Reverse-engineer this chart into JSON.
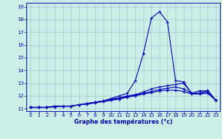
{
  "xlabel": "Graphe des températures (°c)",
  "hours": [
    0,
    1,
    2,
    3,
    4,
    5,
    6,
    7,
    8,
    9,
    10,
    11,
    12,
    13,
    14,
    15,
    16,
    17,
    18,
    19,
    20,
    21,
    22,
    23
  ],
  "line1": [
    11.1,
    11.1,
    11.1,
    11.2,
    11.2,
    11.2,
    11.3,
    11.4,
    11.5,
    11.6,
    11.8,
    12.0,
    12.2,
    13.2,
    15.3,
    18.1,
    18.6,
    17.8,
    13.2,
    13.1,
    12.2,
    12.4,
    12.4,
    11.65
  ],
  "line2": [
    11.1,
    11.1,
    11.1,
    11.2,
    11.2,
    11.2,
    11.3,
    11.4,
    11.5,
    11.6,
    11.75,
    11.85,
    12.0,
    12.1,
    12.3,
    12.55,
    12.7,
    12.8,
    12.9,
    13.0,
    12.2,
    12.2,
    12.45,
    11.65
  ],
  "line3": [
    11.1,
    11.1,
    11.1,
    11.15,
    11.2,
    11.2,
    11.3,
    11.4,
    11.5,
    11.6,
    11.7,
    11.8,
    11.95,
    12.05,
    12.2,
    12.35,
    12.5,
    12.6,
    12.7,
    12.55,
    12.2,
    12.2,
    12.3,
    11.65
  ],
  "line4": [
    11.1,
    11.1,
    11.1,
    11.15,
    11.2,
    11.2,
    11.3,
    11.35,
    11.45,
    11.55,
    11.65,
    11.75,
    11.9,
    12.0,
    12.15,
    12.25,
    12.4,
    12.45,
    12.45,
    12.35,
    12.15,
    12.15,
    12.2,
    11.65
  ],
  "line_color": "#0000bb",
  "bg_color": "#cceee8",
  "grid_color": "#aacccc",
  "ylim_min": 10.8,
  "ylim_max": 19.3,
  "xlim_min": -0.5,
  "xlim_max": 23.5,
  "yticks": [
    11,
    12,
    13,
    14,
    15,
    16,
    17,
    18,
    19
  ],
  "xticks": [
    0,
    1,
    2,
    3,
    4,
    5,
    6,
    7,
    8,
    9,
    10,
    11,
    12,
    13,
    14,
    15,
    16,
    17,
    18,
    19,
    20,
    21,
    22,
    23
  ],
  "xlabel_fontsize": 6.0,
  "tick_fontsize": 5.2,
  "marker_size": 3.5,
  "line_width": 0.85
}
